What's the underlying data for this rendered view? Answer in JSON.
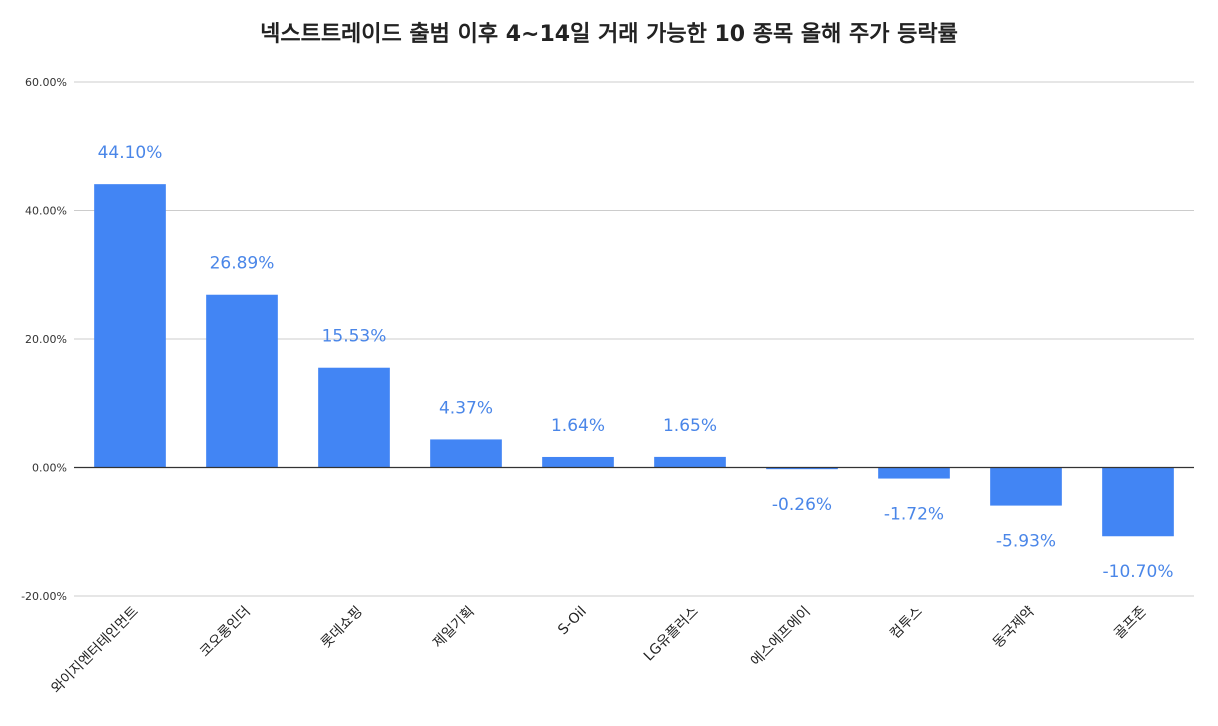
{
  "chart_data": {
    "type": "bar",
    "title": "넥스트트레이드 출범 이후 4~14일 거래 가능한 10 종목 올해 주가 등락률",
    "categories": [
      "와이지엔터테인먼트",
      "코오롱인더",
      "롯데쇼핑",
      "제일기획",
      "S-Oil",
      "LG유플러스",
      "에스에프에이",
      "컴투스",
      "동국제약",
      "골프존"
    ],
    "values": [
      44.1,
      26.89,
      15.53,
      4.37,
      1.64,
      1.65,
      -0.26,
      -1.72,
      -5.93,
      -10.7
    ],
    "data_labels": [
      "44.10%",
      "26.89%",
      "15.53%",
      "4.37%",
      "1.64%",
      "1.65%",
      "-0.26%",
      "-1.72%",
      "-5.93%",
      "-10.70%"
    ],
    "ylim": [
      -20,
      60
    ],
    "yticks": [
      60,
      40,
      20,
      0,
      -20
    ],
    "ytick_labels": [
      "60.00%",
      "40.00%",
      "20.00%",
      "0.00%",
      "-20.00%"
    ],
    "xlabel": "",
    "ylabel": "",
    "grid": true,
    "legend": "none",
    "bar_color": "#4285f4",
    "label_color": "#4a86e8",
    "grid_color": "#cccccc",
    "axis_color": "#333333"
  }
}
